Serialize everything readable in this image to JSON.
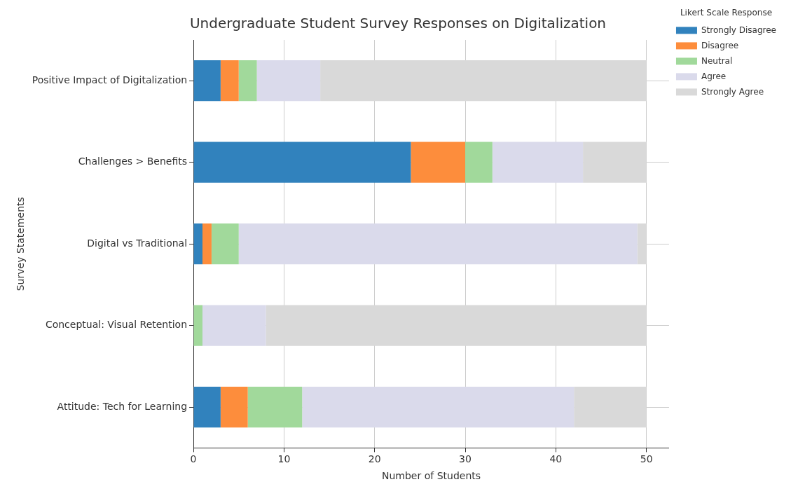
{
  "chart_data": {
    "type": "bar",
    "orientation": "horizontal",
    "stacked": true,
    "title": "Undergraduate Student Survey Responses on Digitalization",
    "xlabel": "Number of Students",
    "ylabel": "Survey Statements",
    "legend_title": "Likert Scale Response",
    "legend": "top right",
    "grid": true,
    "categories": [
      "Positive Impact of Digitalization",
      "Challenges > Benefits",
      "Digital vs Traditional",
      "Conceptual: Visual Retention",
      "Attitude: Tech for Learning"
    ],
    "series": [
      {
        "name": "Strongly Disagree",
        "color": "#3182bd",
        "values": [
          3,
          24,
          1,
          0,
          3
        ]
      },
      {
        "name": "Disagree",
        "color": "#fd8d3c",
        "values": [
          2,
          6,
          1,
          0,
          3
        ]
      },
      {
        "name": "Neutral",
        "color": "#a1d99b",
        "values": [
          2,
          3,
          3,
          1,
          6
        ]
      },
      {
        "name": "Agree",
        "color": "#dadaeb",
        "values": [
          7,
          10,
          44,
          7,
          30
        ]
      },
      {
        "name": "Strongly Agree",
        "color": "#d9d9d9",
        "values": [
          36,
          7,
          1,
          42,
          8
        ]
      }
    ],
    "xlim": [
      0,
      52.5
    ],
    "xticks": [
      0,
      10,
      20,
      30,
      40,
      50
    ]
  }
}
